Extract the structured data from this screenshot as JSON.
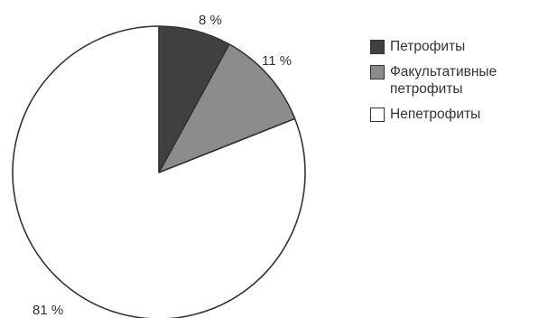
{
  "chart_data": {
    "type": "pie",
    "title": "",
    "slices": [
      {
        "name": "Петрофиты",
        "value": 8,
        "label": "8 %",
        "color": "#404040"
      },
      {
        "name": "Факультативные петрофиты",
        "value": 11,
        "label": "11 %",
        "color": "#8c8c8c"
      },
      {
        "name": "Непетрофиты",
        "value": 81,
        "label": "81 %",
        "color": "#ffffff"
      }
    ],
    "start_angle_deg": 0,
    "direction": "clockwise",
    "legend_position": "right"
  },
  "legend": {
    "items": [
      {
        "label": "Петрофиты",
        "color": "#404040"
      },
      {
        "label": "Факультативные петрофиты",
        "color": "#8c8c8c"
      },
      {
        "label": "Непетрофиты",
        "color": "#ffffff"
      }
    ]
  }
}
